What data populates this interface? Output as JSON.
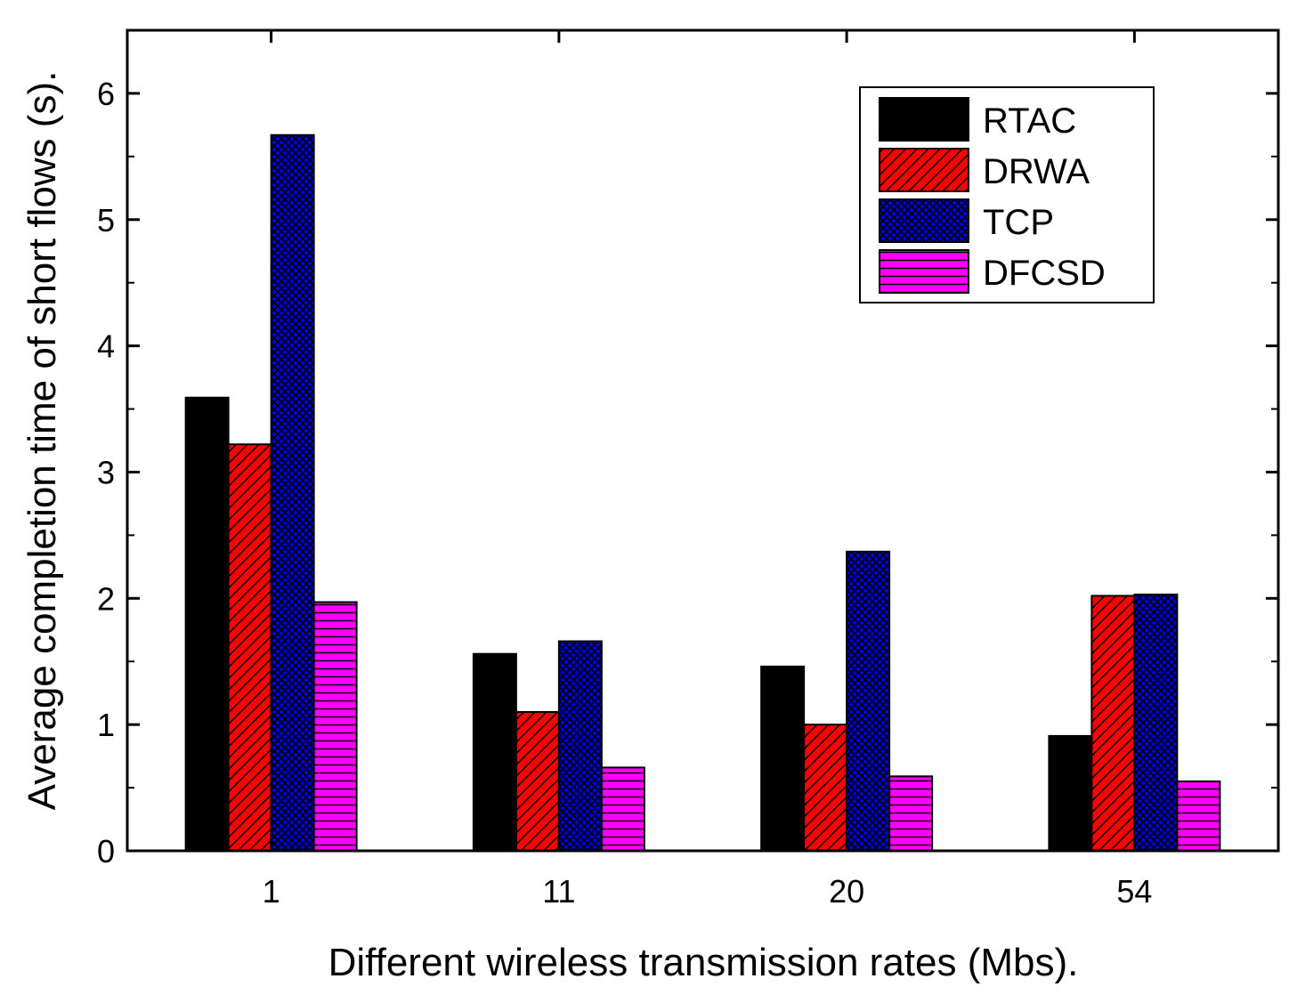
{
  "chart_data": {
    "type": "bar",
    "title": "",
    "xlabel": "Different wireless transmission rates (Mbs).",
    "ylabel": "Average completion time of short flows (s).",
    "categories": [
      "1",
      "11",
      "20",
      "54"
    ],
    "ylim": [
      0,
      6.5
    ],
    "yticks": [
      0,
      1,
      2,
      3,
      4,
      5,
      6
    ],
    "legend_position": "top-right",
    "grid": false,
    "series": [
      {
        "name": "RTAC",
        "color": "#000000",
        "pattern": "solid",
        "values": [
          3.59,
          1.56,
          1.46,
          0.91
        ]
      },
      {
        "name": "DRWA",
        "color": "#ff0000",
        "pattern": "diagonal",
        "values": [
          3.22,
          1.1,
          1.0,
          2.02
        ]
      },
      {
        "name": "TCP",
        "color": "#0000dd",
        "pattern": "crosshatch",
        "values": [
          5.67,
          1.66,
          2.37,
          2.03
        ]
      },
      {
        "name": "DFCSD",
        "color": "#ff00ff",
        "pattern": "horizontal",
        "values": [
          1.97,
          0.66,
          0.59,
          0.55
        ]
      }
    ]
  }
}
